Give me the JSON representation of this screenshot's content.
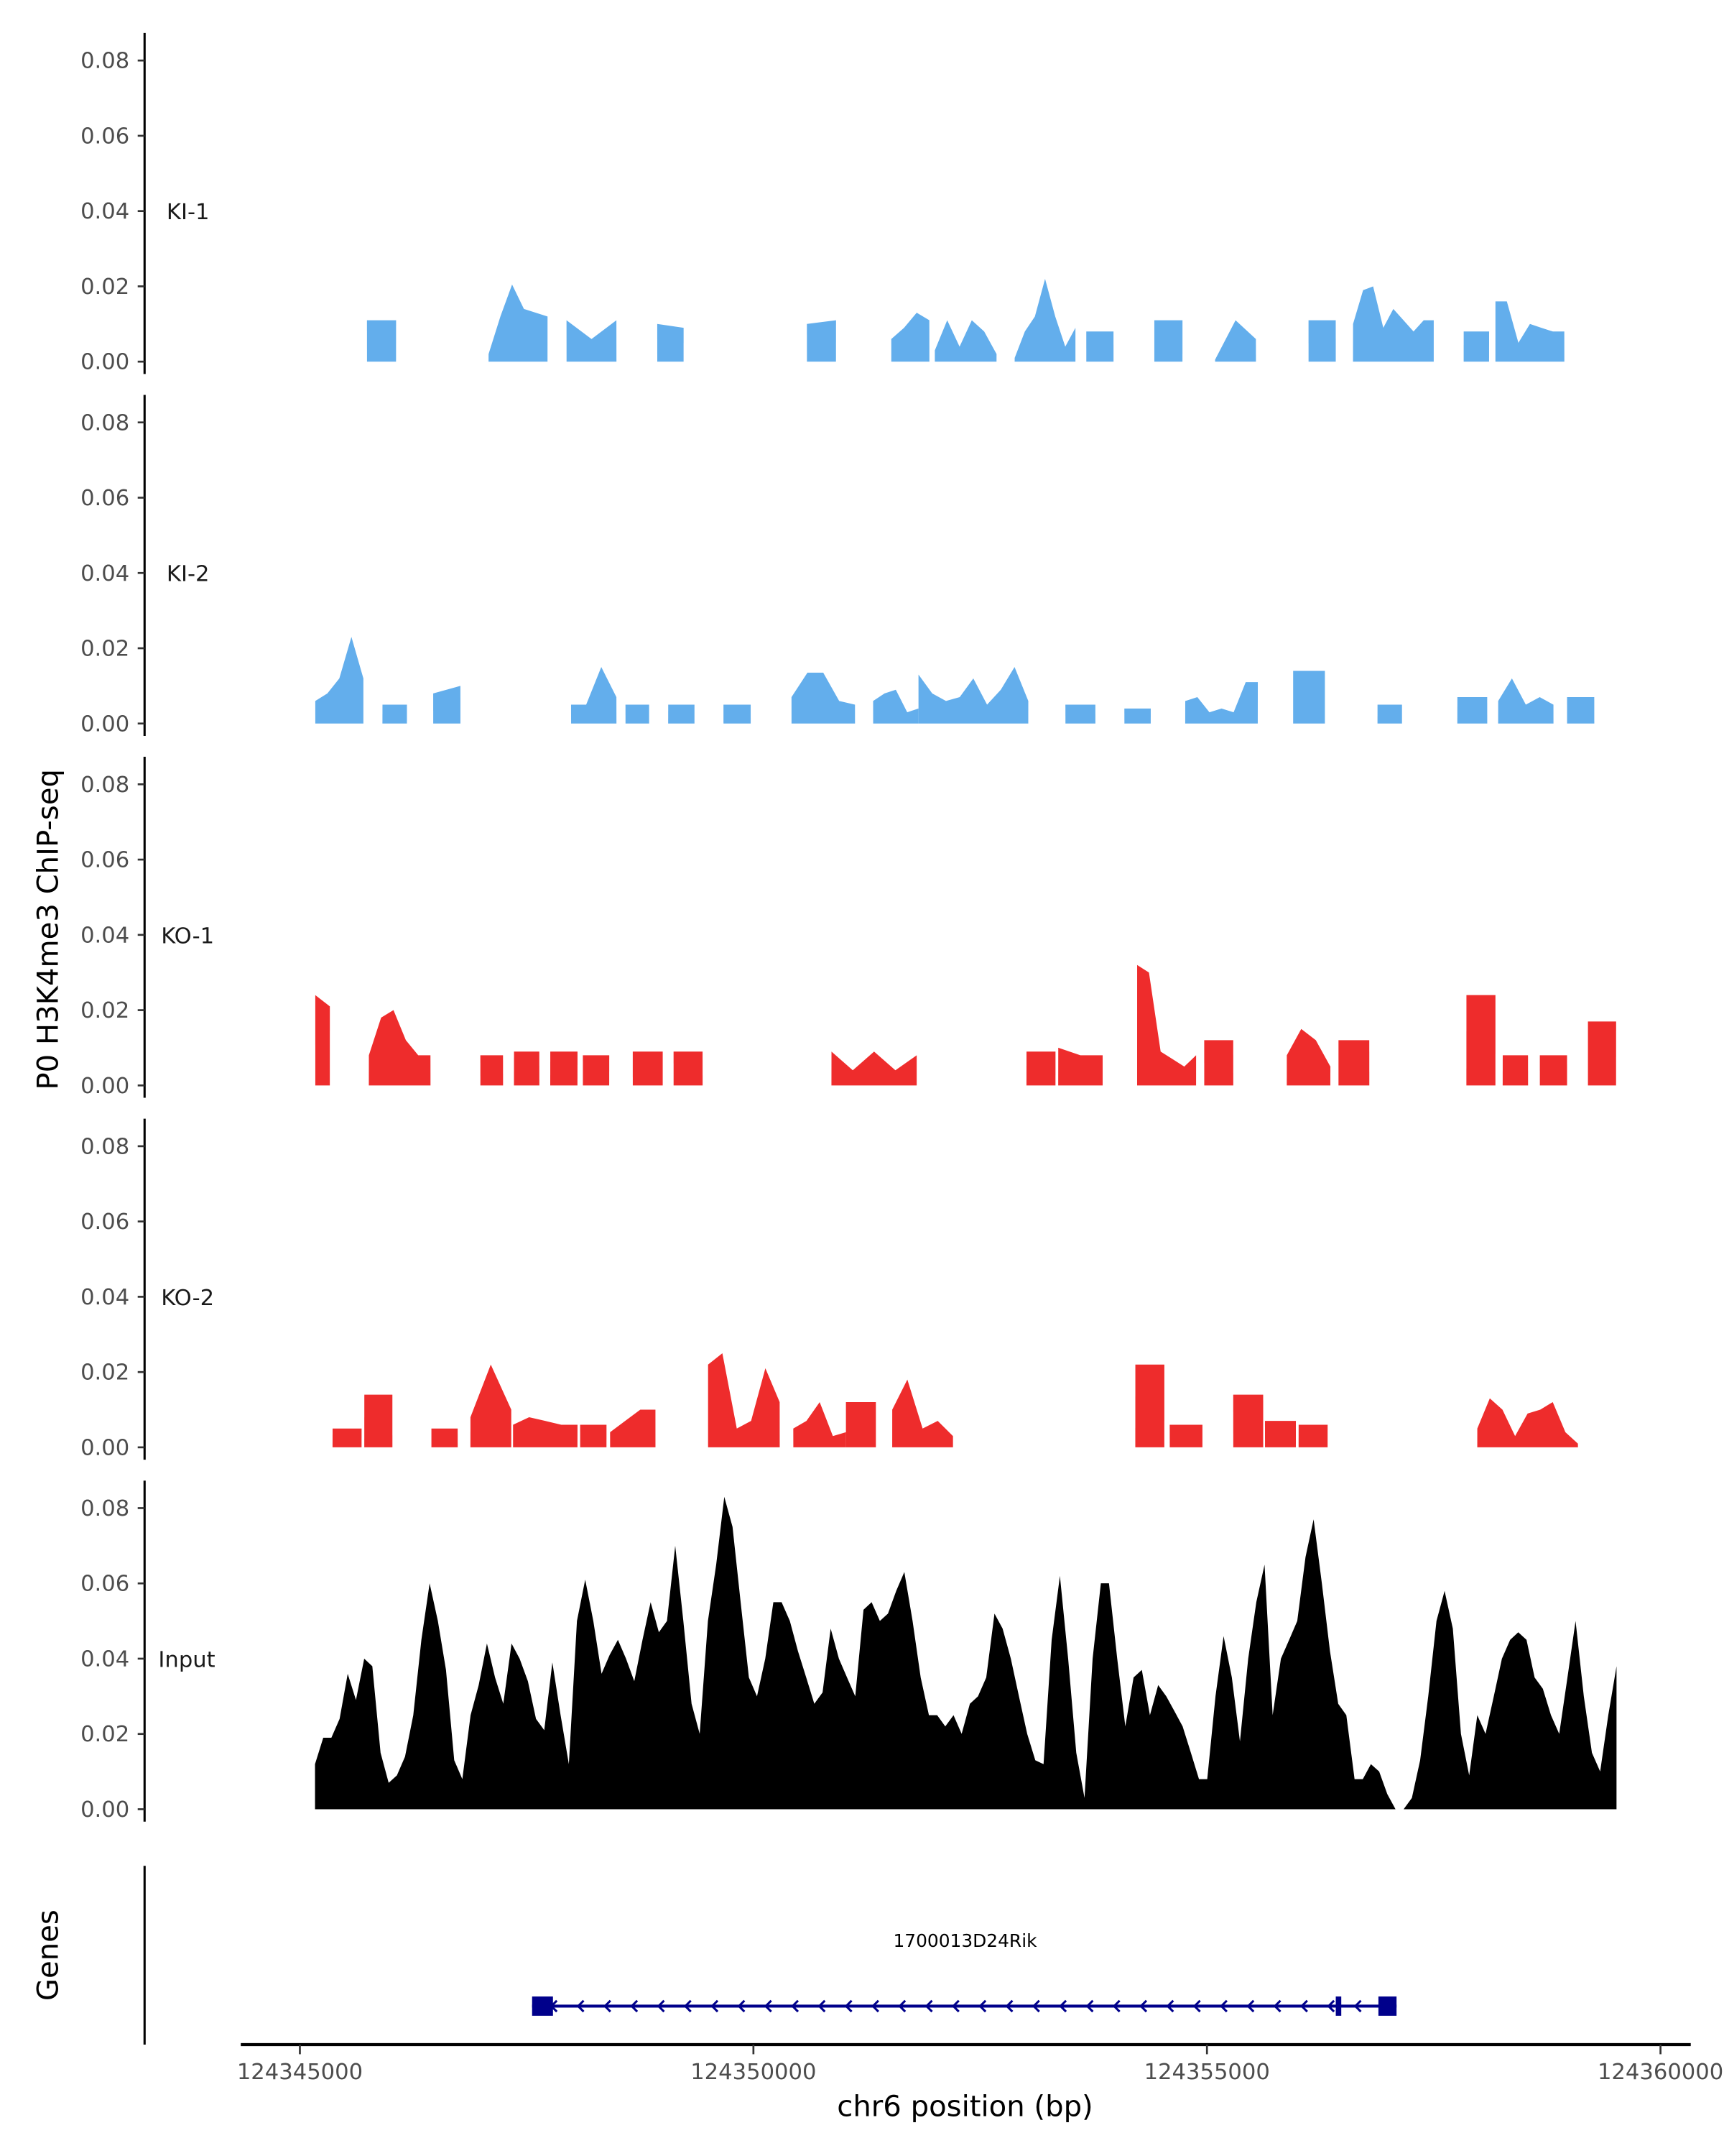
{
  "chart_data": {
    "type": "area",
    "ylabel": "P0 H3K4me3 ChIP-seq",
    "xlabel": "chr6 position (bp)",
    "genes_label": "Genes",
    "xlim": [
      124344830,
      124360350
    ],
    "ylim": [
      0,
      0.087
    ],
    "x_ticks": [
      124345000,
      124350000,
      124355000,
      124360000
    ],
    "x_tick_labels": [
      "124345000",
      "124350000",
      "124355000",
      "124360000"
    ],
    "y_ticks": [
      0,
      0.02,
      0.04,
      0.06,
      0.08
    ],
    "y_tick_labels": [
      "0.00",
      "0.02",
      "0.04",
      "0.06",
      "0.08"
    ],
    "tracks": [
      {
        "name": "KI-1",
        "color": "#63aeec",
        "peaks": [
          {
            "s": 124345740,
            "e": 124346060,
            "v": [
              0.011,
              0.011
            ]
          },
          {
            "s": 124347080,
            "e": 124347730,
            "v": [
              0.002,
              0.012,
              0.0205,
              0.014,
              0.013,
              0.012
            ]
          },
          {
            "s": 124347940,
            "e": 124348490,
            "v": [
              0.011,
              0.006,
              0.011
            ]
          },
          {
            "s": 124348940,
            "e": 124349230,
            "v": [
              0.01,
              0.009
            ]
          },
          {
            "s": 124350590,
            "e": 124350910,
            "v": [
              0.01,
              0.011
            ]
          },
          {
            "s": 124351520,
            "e": 124351940,
            "v": [
              0.006,
              0.009,
              0.013,
              0.011
            ]
          },
          {
            "s": 124352000,
            "e": 124352680,
            "v": [
              0.003,
              0.011,
              0.004,
              0.011,
              0.008,
              0.002
            ]
          },
          {
            "s": 124352880,
            "e": 124353550,
            "v": [
              0.001,
              0.008,
              0.012,
              0.022,
              0.012,
              0.004,
              0.009
            ]
          },
          {
            "s": 124353670,
            "e": 124353970,
            "v": [
              0.008,
              0.008
            ]
          },
          {
            "s": 124354420,
            "e": 124354730,
            "v": [
              0.011,
              0.011
            ]
          },
          {
            "s": 124355090,
            "e": 124355540,
            "v": [
              0.0005,
              0.011,
              0.006
            ]
          },
          {
            "s": 124356120,
            "e": 124356420,
            "v": [
              0.011,
              0.011
            ]
          },
          {
            "s": 124356610,
            "e": 124357500,
            "v": [
              0.01,
              0.019,
              0.02,
              0.009,
              0.014,
              0.011,
              0.008,
              0.011,
              0.011
            ]
          },
          {
            "s": 124357830,
            "e": 124358110,
            "v": [
              0.008,
              0.008
            ]
          },
          {
            "s": 124358180,
            "e": 124358940,
            "v": [
              0.016,
              0.016,
              0.005,
              0.01,
              0.009,
              0.008,
              0.008
            ]
          }
        ]
      },
      {
        "name": "KI-2",
        "color": "#63aeec",
        "peaks": [
          {
            "s": 124345170,
            "e": 124345700,
            "v": [
              0.006,
              0.008,
              0.012,
              0.023,
              0.012
            ]
          },
          {
            "s": 124345910,
            "e": 124346180,
            "v": [
              0.005,
              0.005
            ]
          },
          {
            "s": 124346470,
            "e": 124346770,
            "v": [
              0.008,
              0.01
            ]
          },
          {
            "s": 124347990,
            "e": 124348490,
            "v": [
              0.005,
              0.005,
              0.015,
              0.007
            ]
          },
          {
            "s": 124348590,
            "e": 124348850,
            "v": [
              0.005,
              0.005
            ]
          },
          {
            "s": 124349060,
            "e": 124349350,
            "v": [
              0.005,
              0.005
            ]
          },
          {
            "s": 124349670,
            "e": 124349970,
            "v": [
              0.005,
              0.005
            ]
          },
          {
            "s": 124350420,
            "e": 124351120,
            "v": [
              0.007,
              0.0135,
              0.0135,
              0.006,
              0.005
            ]
          },
          {
            "s": 124351320,
            "e": 124351820,
            "v": [
              0.006,
              0.008,
              0.009,
              0.003,
              0.004
            ]
          },
          {
            "s": 124351820,
            "e": 124353030,
            "v": [
              0.013,
              0.008,
              0.006,
              0.007,
              0.012,
              0.005,
              0.009,
              0.015,
              0.006
            ]
          },
          {
            "s": 124353440,
            "e": 124353770,
            "v": [
              0.005,
              0.005
            ]
          },
          {
            "s": 124354090,
            "e": 124354380,
            "v": [
              0.004,
              0.004
            ]
          },
          {
            "s": 124354760,
            "e": 124355560,
            "v": [
              0.006,
              0.007,
              0.003,
              0.004,
              0.003,
              0.011,
              0.011
            ]
          },
          {
            "s": 124355950,
            "e": 124356300,
            "v": [
              0.014,
              0.014
            ]
          },
          {
            "s": 124356880,
            "e": 124357150,
            "v": [
              0.005,
              0.005
            ]
          },
          {
            "s": 124357760,
            "e": 124358090,
            "v": [
              0.007,
              0.007
            ]
          },
          {
            "s": 124358210,
            "e": 124358820,
            "v": [
              0.006,
              0.012,
              0.005,
              0.007,
              0.005
            ]
          },
          {
            "s": 124358970,
            "e": 124359270,
            "v": [
              0.007,
              0.007
            ]
          }
        ]
      },
      {
        "name": "KO-1",
        "color": "#ee2c2c",
        "peaks": [
          {
            "s": 124345170,
            "e": 124345330,
            "v": [
              0.024,
              0.021
            ]
          },
          {
            "s": 124345760,
            "e": 124346440,
            "v": [
              0.008,
              0.018,
              0.02,
              0.012,
              0.008,
              0.008
            ]
          },
          {
            "s": 124346990,
            "e": 124347240,
            "v": [
              0.008,
              0.008
            ]
          },
          {
            "s": 124347360,
            "e": 124347640,
            "v": [
              0.009,
              0.009
            ]
          },
          {
            "s": 124347760,
            "e": 124348060,
            "v": [
              0.009,
              0.009
            ]
          },
          {
            "s": 124348120,
            "e": 124348410,
            "v": [
              0.008,
              0.008
            ]
          },
          {
            "s": 124348670,
            "e": 124349000,
            "v": [
              0.009,
              0.009
            ]
          },
          {
            "s": 124349120,
            "e": 124349440,
            "v": [
              0.009,
              0.009
            ]
          },
          {
            "s": 124350860,
            "e": 124351800,
            "v": [
              0.009,
              0.004,
              0.009,
              0.004,
              0.008
            ]
          },
          {
            "s": 124353010,
            "e": 124353330,
            "v": [
              0.009,
              0.009
            ]
          },
          {
            "s": 124353360,
            "e": 124353850,
            "v": [
              0.01,
              0.008,
              0.008
            ]
          },
          {
            "s": 124354230,
            "e": 124354880,
            "v": [
              0.032,
              0.03,
              0.009,
              0.007,
              0.005,
              0.008
            ]
          },
          {
            "s": 124354970,
            "e": 124355290,
            "v": [
              0.012,
              0.012
            ]
          },
          {
            "s": 124355880,
            "e": 124356360,
            "v": [
              0.008,
              0.015,
              0.012,
              0.005
            ]
          },
          {
            "s": 124356450,
            "e": 124356790,
            "v": [
              0.012,
              0.012
            ]
          },
          {
            "s": 124357860,
            "e": 124358180,
            "v": [
              0.024,
              0.024
            ]
          },
          {
            "s": 124358260,
            "e": 124358540,
            "v": [
              0.008,
              0.008
            ]
          },
          {
            "s": 124358670,
            "e": 124358970,
            "v": [
              0.008,
              0.008
            ]
          },
          {
            "s": 124359200,
            "e": 124359510,
            "v": [
              0.017,
              0.017
            ]
          }
        ]
      },
      {
        "name": "KO-2",
        "color": "#ee2c2c",
        "peaks": [
          {
            "s": 124345360,
            "e": 124345680,
            "v": [
              0.005,
              0.005
            ]
          },
          {
            "s": 124345710,
            "e": 124346020,
            "v": [
              0.014,
              0.014
            ]
          },
          {
            "s": 124346450,
            "e": 124346740,
            "v": [
              0.005,
              0.005
            ]
          },
          {
            "s": 124346880,
            "e": 124347330,
            "v": [
              0.008,
              0.022,
              0.01
            ]
          },
          {
            "s": 124347350,
            "e": 124348060,
            "v": [
              0.006,
              0.008,
              0.007,
              0.006,
              0.006
            ]
          },
          {
            "s": 124348090,
            "e": 124348380,
            "v": [
              0.006,
              0.006
            ]
          },
          {
            "s": 124348420,
            "e": 124348920,
            "v": [
              0.004,
              0.007,
              0.01,
              0.01
            ]
          },
          {
            "s": 124349500,
            "e": 124350290,
            "v": [
              0.022,
              0.025,
              0.005,
              0.007,
              0.021,
              0.012
            ]
          },
          {
            "s": 124350440,
            "e": 124351020,
            "v": [
              0.005,
              0.007,
              0.012,
              0.003,
              0.004
            ]
          },
          {
            "s": 124351020,
            "e": 124351350,
            "v": [
              0.012,
              0.012
            ]
          },
          {
            "s": 124351530,
            "e": 124352200,
            "v": [
              0.01,
              0.018,
              0.005,
              0.007,
              0.003
            ]
          },
          {
            "s": 124354210,
            "e": 124354530,
            "v": [
              0.022,
              0.022
            ]
          },
          {
            "s": 124354590,
            "e": 124354950,
            "v": [
              0.006,
              0.006
            ]
          },
          {
            "s": 124355290,
            "e": 124355620,
            "v": [
              0.014,
              0.014
            ]
          },
          {
            "s": 124355640,
            "e": 124355980,
            "v": [
              0.007,
              0.007
            ]
          },
          {
            "s": 124356010,
            "e": 124356330,
            "v": [
              0.006,
              0.006
            ]
          },
          {
            "s": 124357980,
            "e": 124359090,
            "v": [
              0.005,
              0.013,
              0.01,
              0.003,
              0.009,
              0.01,
              0.012,
              0.004,
              0.001
            ]
          }
        ]
      },
      {
        "name": "Input",
        "color": "#000000",
        "continuous": {
          "s": 124345167,
          "e": 124359515,
          "v": [
            0.012,
            0.019,
            0.019,
            0.024,
            0.036,
            0.029,
            0.04,
            0.038,
            0.015,
            0.007,
            0.009,
            0.014,
            0.025,
            0.045,
            0.06,
            0.05,
            0.037,
            0.013,
            0.008,
            0.025,
            0.033,
            0.044,
            0.035,
            0.028,
            0.044,
            0.04,
            0.034,
            0.024,
            0.021,
            0.039,
            0.025,
            0.012,
            0.05,
            0.061,
            0.05,
            0.036,
            0.041,
            0.045,
            0.04,
            0.034,
            0.045,
            0.055,
            0.047,
            0.05,
            0.07,
            0.05,
            0.028,
            0.02,
            0.05,
            0.065,
            0.083,
            0.075,
            0.055,
            0.035,
            0.03,
            0.04,
            0.055,
            0.055,
            0.05,
            0.042,
            0.035,
            0.028,
            0.031,
            0.048,
            0.04,
            0.035,
            0.03,
            0.053,
            0.055,
            0.05,
            0.052,
            0.058,
            0.063,
            0.05,
            0.035,
            0.025,
            0.025,
            0.022,
            0.025,
            0.02,
            0.028,
            0.03,
            0.035,
            0.052,
            0.048,
            0.04,
            0.03,
            0.02,
            0.013,
            0.012,
            0.045,
            0.062,
            0.04,
            0.015,
            0.003,
            0.04,
            0.06,
            0.06,
            0.04,
            0.022,
            0.035,
            0.037,
            0.025,
            0.033,
            0.03,
            0.026,
            0.022,
            0.015,
            0.008,
            0.008,
            0.03,
            0.046,
            0.035,
            0.018,
            0.04,
            0.055,
            0.065,
            0.025,
            0.04,
            0.045,
            0.05,
            0.067,
            0.077,
            0.06,
            0.042,
            0.028,
            0.025,
            0.008,
            0.008,
            0.012,
            0.01,
            0.004,
            0.0,
            0.0,
            0.003,
            0.013,
            0.03,
            0.05,
            0.058,
            0.048,
            0.02,
            0.009,
            0.025,
            0.02,
            0.03,
            0.04,
            0.045,
            0.047,
            0.045,
            0.035,
            0.032,
            0.025,
            0.02,
            0.035,
            0.05,
            0.03,
            0.015,
            0.01,
            0.025,
            0.038
          ]
        }
      }
    ],
    "gene": {
      "name": "1700013D24Rik",
      "strand": "-",
      "start": 124347560,
      "end": 124357090,
      "exons": [
        [
          124347560,
          124347790
        ],
        [
          124356420,
          124356480
        ],
        [
          124356890,
          124357090
        ]
      ],
      "color": "#00008b"
    }
  }
}
